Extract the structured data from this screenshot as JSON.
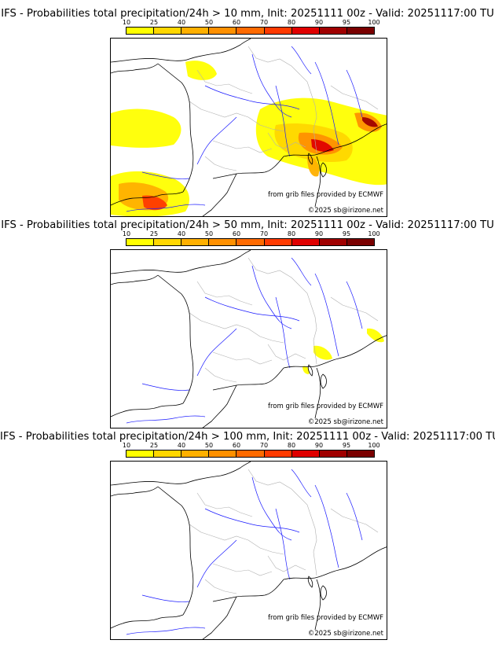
{
  "panels": [
    {
      "title": "IFS - Probabilities total precipitation/24h > 10 mm, Init: 20251111 00z - Valid: 20251117:00 TU",
      "threshold_mm": 10,
      "source": "from grib files provided by ECMWF",
      "copyright": "©2025 sb@irizone.net"
    },
    {
      "title": "IFS - Probabilities total precipitation/24h > 50 mm, Init: 20251111 00z - Valid: 20251117:00 TU",
      "threshold_mm": 50,
      "source": "from grib files provided by ECMWF",
      "copyright": "©2025 sb@irizone.net"
    },
    {
      "title": "IFS - Probabilities total precipitation/24h > 100 mm, Init: 20251111 00z - Valid: 20251117:00 TU",
      "threshold_mm": 100,
      "source": "from grib files provided by ECMWF",
      "copyright": "©2025 sb@irizone.net"
    }
  ],
  "colorbar": {
    "ticks": [
      "10",
      "25",
      "40",
      "50",
      "60",
      "70",
      "80",
      "90",
      "95",
      "100"
    ],
    "colors": [
      "#ffff00",
      "#ffd700",
      "#ffb000",
      "#ff9000",
      "#ff6a00",
      "#ff3a00",
      "#e00000",
      "#a00000",
      "#7a0000"
    ]
  },
  "colors": {
    "coast": "#000000",
    "rivers": "#1a1aff",
    "borders": "#b0b0b0"
  }
}
